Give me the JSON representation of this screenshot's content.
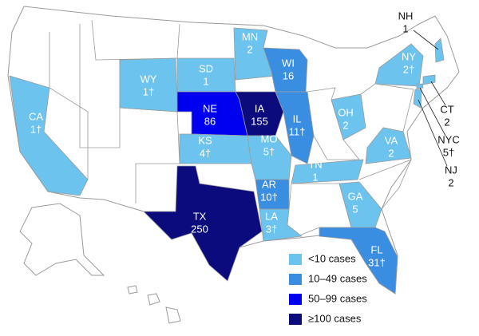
{
  "states": [
    {
      "abbr": "WY",
      "count": "1†",
      "color": "#6cc4ee"
    },
    {
      "abbr": "SD",
      "count": "1",
      "color": "#6cc4ee"
    },
    {
      "abbr": "MN",
      "count": "2",
      "color": "#6cc4ee"
    },
    {
      "abbr": "WI",
      "count": "16",
      "color": "#3a8ee2"
    },
    {
      "abbr": "NE",
      "count": "86",
      "color": "#0000f0"
    },
    {
      "abbr": "IA",
      "count": "155",
      "color": "#0b0b7e"
    },
    {
      "abbr": "IL",
      "count": "11†",
      "color": "#3a8ee2"
    },
    {
      "abbr": "CA",
      "count": "1†",
      "color": "#6cc4ee"
    },
    {
      "abbr": "KS",
      "count": "4†",
      "color": "#6cc4ee"
    },
    {
      "abbr": "MO",
      "count": "5†",
      "color": "#6cc4ee"
    },
    {
      "abbr": "OH",
      "count": "2",
      "color": "#6cc4ee"
    },
    {
      "abbr": "NY",
      "count": "2†",
      "color": "#6cc4ee"
    },
    {
      "abbr": "VA",
      "count": "2",
      "color": "#6cc4ee"
    },
    {
      "abbr": "AR",
      "count": "10†",
      "color": "#3a8ee2"
    },
    {
      "abbr": "TN",
      "count": "1",
      "color": "#6cc4ee"
    },
    {
      "abbr": "TX",
      "count": "250",
      "color": "#0b0b7e"
    },
    {
      "abbr": "GA",
      "count": "5",
      "color": "#6cc4ee"
    },
    {
      "abbr": "LA",
      "count": "3†",
      "color": "#6cc4ee"
    },
    {
      "abbr": "FL",
      "count": "31†",
      "color": "#3a8ee2"
    },
    {
      "abbr": "NH",
      "count": "1",
      "color": "#6cc4ee"
    },
    {
      "abbr": "CT",
      "count": "2",
      "color": "#6cc4ee"
    },
    {
      "abbr": "NYC",
      "count": "5†",
      "color": "#6cc4ee"
    },
    {
      "abbr": "NJ",
      "count": "2",
      "color": "#6cc4ee"
    }
  ],
  "legend": [
    {
      "label": "<10 cases",
      "color": "#6cc4ee"
    },
    {
      "label": "10–49 cases",
      "color": "#3a8ee2"
    },
    {
      "label": "50–99 cases",
      "color": "#0000f0"
    },
    {
      "label": "≥100 cases",
      "color": "#0b0b7e"
    }
  ]
}
